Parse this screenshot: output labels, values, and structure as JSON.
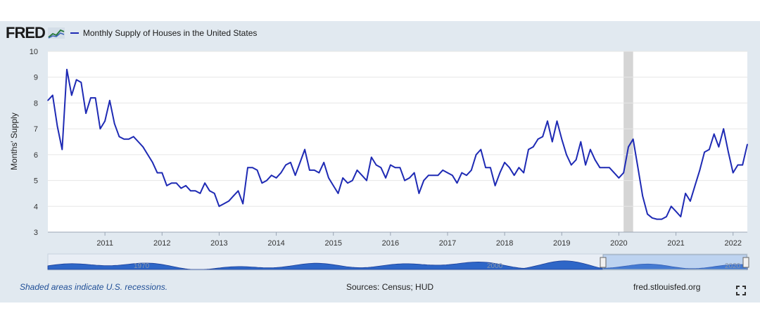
{
  "brand": {
    "logo_text": "FRED"
  },
  "legend": {
    "series_label": "Monthly Supply of Houses in the United States",
    "color": "#1e2ab4"
  },
  "footer": {
    "recession_note": "Shaded areas indicate U.S. recessions.",
    "sources": "Sources: Census; HUD",
    "site": "fred.stlouisfed.org"
  },
  "navigator": {
    "labels": [
      "1970",
      "2000",
      "2020"
    ]
  },
  "icons": {
    "fullscreen": "fullscreen-icon",
    "spark": "chart-spark-icon"
  },
  "chart_data": {
    "type": "line",
    "title": "Monthly Supply of Houses in the United States",
    "ylabel": "Months' Supply",
    "xlabel": "",
    "ylim": [
      3,
      10
    ],
    "yticks": [
      3,
      4,
      5,
      6,
      7,
      8,
      9,
      10
    ],
    "xlim": [
      2010.0,
      2022.25
    ],
    "xticks": [
      2011,
      2012,
      2013,
      2014,
      2015,
      2016,
      2017,
      2018,
      2019,
      2020,
      2021,
      2022
    ],
    "grid": true,
    "recessions": [
      [
        2020.083,
        2020.25
      ]
    ],
    "series": [
      {
        "name": "Monthly Supply of Houses in the United States",
        "color": "#1e2ab4",
        "start": 2010.0,
        "step_months": 1,
        "values": [
          8.1,
          8.3,
          7.1,
          6.2,
          9.3,
          8.3,
          8.9,
          8.8,
          7.6,
          8.2,
          8.2,
          7.0,
          7.3,
          8.1,
          7.2,
          6.7,
          6.6,
          6.6,
          6.7,
          6.5,
          6.3,
          6.0,
          5.7,
          5.3,
          5.3,
          4.8,
          4.9,
          4.9,
          4.7,
          4.8,
          4.6,
          4.6,
          4.5,
          4.9,
          4.6,
          4.5,
          4.0,
          4.1,
          4.2,
          4.4,
          4.6,
          4.1,
          5.5,
          5.5,
          5.4,
          4.9,
          5.0,
          5.2,
          5.1,
          5.3,
          5.6,
          5.7,
          5.2,
          5.7,
          6.2,
          5.4,
          5.4,
          5.3,
          5.7,
          5.1,
          4.8,
          4.5,
          5.1,
          4.9,
          5.0,
          5.4,
          5.2,
          5.0,
          5.9,
          5.6,
          5.5,
          5.1,
          5.6,
          5.5,
          5.5,
          5.0,
          5.1,
          5.3,
          4.5,
          5.0,
          5.2,
          5.2,
          5.2,
          5.4,
          5.3,
          5.2,
          4.9,
          5.3,
          5.2,
          5.4,
          6.0,
          6.2,
          5.5,
          5.5,
          4.8,
          5.3,
          5.7,
          5.5,
          5.2,
          5.5,
          5.3,
          6.2,
          6.3,
          6.6,
          6.7,
          7.3,
          6.5,
          7.3,
          6.6,
          6.0,
          5.6,
          5.8,
          6.5,
          5.6,
          6.2,
          5.8,
          5.5,
          5.5,
          5.5,
          5.3,
          5.1,
          5.3,
          6.3,
          6.6,
          5.5,
          4.4,
          3.7,
          3.55,
          3.5,
          3.5,
          3.6,
          4.0,
          3.8,
          3.6,
          4.5,
          4.2,
          4.8,
          5.4,
          6.1,
          6.2,
          6.8,
          6.3,
          7.0,
          6.1,
          5.3,
          5.6,
          5.6,
          6.4
        ]
      }
    ]
  }
}
